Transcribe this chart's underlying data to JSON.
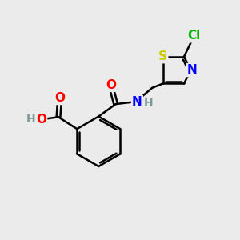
{
  "bg_color": "#ebebeb",
  "atom_colors": {
    "C": "#000000",
    "H": "#7a9a9a",
    "N": "#0000ff",
    "O": "#ff0000",
    "S": "#cccc00",
    "Cl": "#00bb00"
  },
  "bond_color": "#000000",
  "bond_width": 1.8,
  "font_size": 11,
  "fig_size": [
    3.0,
    3.0
  ],
  "dpi": 100
}
